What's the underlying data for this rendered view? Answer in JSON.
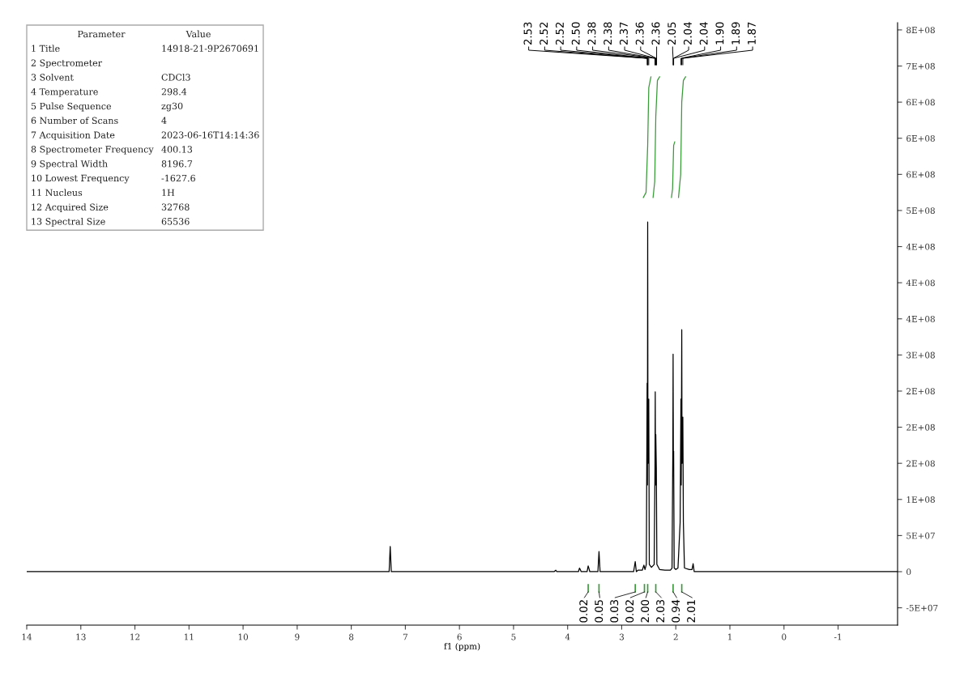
{
  "chart_data": {
    "type": "line",
    "xlabel": "f1 (ppm)",
    "xlim": [
      14,
      -2.1
    ],
    "xticks": [
      14,
      13,
      12,
      11,
      10,
      9,
      8,
      7,
      6,
      5,
      4,
      3,
      2,
      1,
      0,
      -1
    ],
    "ylim": [
      -74000000,
      760000000
    ],
    "yticks": [
      {
        "value": 750000000,
        "label": "8E+08"
      },
      {
        "value": 700000000,
        "label": "7E+08"
      },
      {
        "value": 650000000,
        "label": "6E+08"
      },
      {
        "value": 600000000,
        "label": "6E+08"
      },
      {
        "value": 550000000,
        "label": "6E+08"
      },
      {
        "value": 500000000,
        "label": "5E+08"
      },
      {
        "value": 450000000,
        "label": "4E+08"
      },
      {
        "value": 400000000,
        "label": "4E+08"
      },
      {
        "value": 350000000,
        "label": "4E+08"
      },
      {
        "value": 300000000,
        "label": "3E+08"
      },
      {
        "value": 250000000,
        "label": "2E+08"
      },
      {
        "value": 200000000,
        "label": "2E+08"
      },
      {
        "value": 150000000,
        "label": "2E+08"
      },
      {
        "value": 100000000,
        "label": "1E+08"
      },
      {
        "value": 50000000,
        "label": "5E+07"
      },
      {
        "value": 0,
        "label": "0"
      },
      {
        "value": -50000000,
        "label": "-5E+07"
      }
    ],
    "marker": "none",
    "line_style": "solid",
    "series": [
      {
        "color": "#000000",
        "x": [
          14.0,
          7.3,
          7.28,
          7.26,
          4.25,
          4.22,
          4.2,
          3.8,
          3.78,
          3.76,
          3.75,
          3.64,
          3.62,
          3.6,
          3.59,
          3.44,
          3.42,
          3.4,
          2.78,
          2.75,
          2.73,
          2.7,
          2.62,
          2.59,
          2.57,
          2.545,
          2.53,
          2.525,
          2.52,
          2.515,
          2.5,
          2.49,
          2.45,
          2.4,
          2.385,
          2.38,
          2.375,
          2.37,
          2.36,
          2.35,
          2.3,
          2.2,
          2.1,
          2.07,
          2.055,
          2.05,
          2.045,
          2.04,
          2.03,
          2.0,
          1.96,
          1.92,
          1.905,
          1.9,
          1.89,
          1.885,
          1.87,
          1.86,
          1.84,
          1.75,
          1.7,
          1.68,
          1.66,
          1.5,
          -2.1
        ],
        "values": [
          0,
          0,
          35000000,
          0,
          0,
          2000000,
          0,
          0,
          5000000,
          2000000,
          0,
          0,
          8000000,
          3000000,
          0,
          0,
          28000000,
          0,
          0,
          14000000,
          0,
          2000000,
          2000000,
          9000000,
          3000000,
          10000000,
          261000000,
          120000000,
          484000000,
          150000000,
          239000000,
          10000000,
          6000000,
          10000000,
          144000000,
          249000000,
          120000000,
          190000000,
          144000000,
          10000000,
          3000000,
          2000000,
          2000000,
          5000000,
          167000000,
          301000000,
          150000000,
          167000000,
          5000000,
          3000000,
          5000000,
          68000000,
          239000000,
          120000000,
          335000000,
          150000000,
          214000000,
          68000000,
          5000000,
          3000000,
          3000000,
          11000000,
          0,
          0,
          0
        ]
      },
      {
        "color": "#3a9a3a",
        "x": [
          2.6,
          2.55,
          2.52,
          2.5,
          2.46
        ],
        "values": [
          518000000,
          525000000,
          590000000,
          670000000,
          685000000
        ]
      },
      {
        "color": "#3a9a3a",
        "x": [
          2.42,
          2.39,
          2.37,
          2.34,
          2.3
        ],
        "values": [
          518000000,
          540000000,
          630000000,
          680000000,
          685000000
        ]
      },
      {
        "color": "#3a9a3a",
        "x": [
          2.08,
          2.06,
          2.04,
          2.02
        ],
        "values": [
          518000000,
          530000000,
          590000000,
          595000000
        ]
      },
      {
        "color": "#3a9a3a",
        "x": [
          1.95,
          1.91,
          1.89,
          1.86,
          1.82
        ],
        "values": [
          518000000,
          550000000,
          650000000,
          680000000,
          685000000
        ]
      }
    ],
    "annotations": [
      "Parameter\tValue",
      "1 Title\t14918-21-9P2670691",
      "2 Spectrometer",
      "3 Solvent\tCDCl3",
      "4 Temperature\t298.4",
      "5 Pulse Sequence\tzg30",
      "6 Number of Scans\t4",
      "7 Acquisition Date\t2023-06-16T14:14:36",
      "8 Spectrometer Frequency\t400.13",
      "9 Spectral Width\t8196.7",
      "10 Lowest Frequency\t-1627.6",
      "11 Nucleus\t1H",
      "12 Acquired Size\t32768",
      "13 Spectral Size\t65536",
      {
        "text": "2.53",
        "x": 2.53
      },
      {
        "text": "2.52",
        "x": 2.52
      },
      {
        "text": "2.52",
        "x": 2.515
      },
      {
        "text": "2.50",
        "x": 2.5
      },
      {
        "text": "2.38",
        "x": 2.385
      },
      {
        "text": "2.38",
        "x": 2.38
      },
      {
        "text": "2.37",
        "x": 2.37
      },
      {
        "text": "2.36",
        "x": 2.36
      },
      {
        "text": "2.36",
        "x": 2.355
      },
      {
        "text": "2.05",
        "x": 2.05
      },
      {
        "text": "2.04",
        "x": 2.045
      },
      {
        "text": "2.04",
        "x": 2.04
      },
      {
        "text": "1.90",
        "x": 1.905
      },
      {
        "text": "1.89",
        "x": 1.89
      },
      {
        "text": "1.87",
        "x": 1.87
      },
      {
        "text": "0.02",
        "x": 3.62
      },
      {
        "text": "0.05",
        "x": 3.42
      },
      {
        "text": "0.03",
        "x": 2.75
      },
      {
        "text": "0.02",
        "x": 2.58
      },
      {
        "text": "2.00",
        "x": 2.52
      },
      {
        "text": "2.03",
        "x": 2.37
      },
      {
        "text": "0.94",
        "x": 2.05
      },
      {
        "text": "2.01",
        "x": 1.89
      }
    ]
  }
}
